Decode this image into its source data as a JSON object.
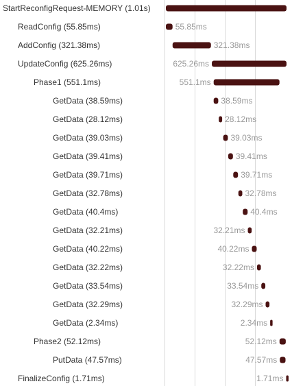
{
  "chart_data": {
    "type": "bar",
    "orientation": "horizontal",
    "chart_kind": "trace-waterfall",
    "time_unit": "ms",
    "grid": true,
    "bar_color": "#4a1212",
    "spans": [
      {
        "name": "StartReconfigRequest-MEMORY",
        "depth": 0,
        "start": 0,
        "duration": 1010,
        "label": "StartReconfigRequest-MEMORY (1.01s)",
        "duration_label": ""
      },
      {
        "name": "ReadConfig",
        "depth": 1,
        "start": 0,
        "duration": 55.85,
        "label": "ReadConfig (55.85ms)",
        "duration_label": "55.85ms"
      },
      {
        "name": "AddConfig",
        "depth": 1,
        "start": 56,
        "duration": 321.38,
        "label": "AddConfig (321.38ms)",
        "duration_label": "321.38ms"
      },
      {
        "name": "UpdateConfig",
        "depth": 1,
        "start": 384.74,
        "duration": 625.26,
        "label": "UpdateConfig (625.26ms)",
        "duration_label": "625.26ms"
      },
      {
        "name": "Phase1",
        "depth": 2,
        "start": 400,
        "duration": 551.1,
        "label": "Phase1 (551.1ms)",
        "duration_label": "551.1ms"
      },
      {
        "name": "GetData",
        "depth": 3,
        "start": 400,
        "duration": 38.59,
        "label": "GetData (38.59ms)",
        "duration_label": "38.59ms"
      },
      {
        "name": "GetData",
        "depth": 3,
        "start": 443,
        "duration": 28.12,
        "label": "GetData (28.12ms)",
        "duration_label": "28.12ms"
      },
      {
        "name": "GetData",
        "depth": 3,
        "start": 480,
        "duration": 39.03,
        "label": "GetData (39.03ms)",
        "duration_label": "39.03ms"
      },
      {
        "name": "GetData",
        "depth": 3,
        "start": 522,
        "duration": 39.41,
        "label": "GetData (39.41ms)",
        "duration_label": "39.41ms"
      },
      {
        "name": "GetData",
        "depth": 3,
        "start": 564,
        "duration": 39.71,
        "label": "GetData (39.71ms)",
        "duration_label": "39.71ms"
      },
      {
        "name": "GetData",
        "depth": 3,
        "start": 607,
        "duration": 32.78,
        "label": "GetData (32.78ms)",
        "duration_label": "32.78ms"
      },
      {
        "name": "GetData",
        "depth": 3,
        "start": 644,
        "duration": 40.4,
        "label": "GetData (40.4ms)",
        "duration_label": "40.4ms"
      },
      {
        "name": "GetData",
        "depth": 3,
        "start": 686,
        "duration": 32.21,
        "label": "GetData (32.21ms)",
        "duration_label": "32.21ms"
      },
      {
        "name": "GetData",
        "depth": 3,
        "start": 720,
        "duration": 40.22,
        "label": "GetData (40.22ms)",
        "duration_label": "40.22ms"
      },
      {
        "name": "GetData",
        "depth": 3,
        "start": 763,
        "duration": 32.22,
        "label": "GetData (32.22ms)",
        "duration_label": "32.22ms"
      },
      {
        "name": "GetData",
        "depth": 3,
        "start": 799,
        "duration": 33.54,
        "label": "GetData (33.54ms)",
        "duration_label": "33.54ms"
      },
      {
        "name": "GetData",
        "depth": 3,
        "start": 835,
        "duration": 32.29,
        "label": "GetData (32.29ms)",
        "duration_label": "32.29ms"
      },
      {
        "name": "GetData",
        "depth": 3,
        "start": 873,
        "duration": 2.34,
        "label": "GetData (2.34ms)",
        "duration_label": "2.34ms"
      },
      {
        "name": "Phase2",
        "depth": 2,
        "start": 951.5,
        "duration": 52.12,
        "label": "Phase2 (52.12ms)",
        "duration_label": "52.12ms"
      },
      {
        "name": "PutData",
        "depth": 3,
        "start": 954,
        "duration": 47.57,
        "label": "PutData (47.57ms)",
        "duration_label": "47.57ms"
      },
      {
        "name": "FinalizeConfig",
        "depth": 1,
        "start": 1007,
        "duration": 1.71,
        "label": "FinalizeConfig (1.71ms)",
        "duration_label": "1.71ms"
      }
    ]
  }
}
